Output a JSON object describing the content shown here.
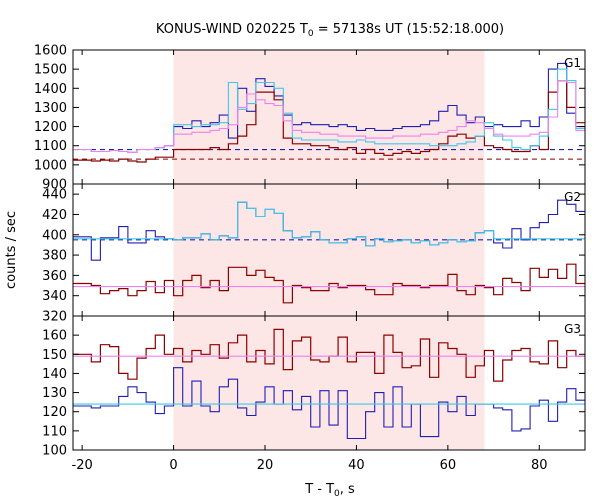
{
  "chart_data": {
    "type": "line",
    "title": "KONUS-WIND 020225 T0 = 57138s UT (15:52:18.000)",
    "title_parts": {
      "pre": "KONUS-WIND 020225 T",
      "sub": "0",
      "post": " = 57138s UT (15:52:18.000)"
    },
    "xlabel": "T - T0, s",
    "xlabel_parts": {
      "pre": "T - T",
      "sub": "0",
      "post": ", s"
    },
    "ylabel": "counts / sec",
    "xlim": [
      -22,
      90
    ],
    "xticks": [
      -20,
      0,
      20,
      40,
      60,
      80
    ],
    "shaded_interval": [
      0,
      68
    ],
    "step_edges_sec": [
      -22,
      -20,
      -18,
      -16,
      -14,
      -12,
      -10,
      -8,
      -6,
      -4,
      -2,
      0,
      2,
      4,
      6,
      8,
      10,
      12,
      14,
      16,
      18,
      20,
      22,
      24,
      26,
      28,
      30,
      32,
      34,
      36,
      38,
      40,
      42,
      44,
      46,
      48,
      50,
      52,
      54,
      56,
      58,
      60,
      62,
      64,
      66,
      68,
      70,
      72,
      74,
      76,
      78,
      80,
      82,
      84,
      86,
      88,
      90
    ],
    "colors": {
      "red_series": "#8b0000",
      "blue_series": "#1f1fb4",
      "pink_line": "#ee82ee",
      "cyan_line": "#3fc8e8",
      "shade": "#fde6e6"
    },
    "panels": [
      {
        "name": "G1",
        "ylim": [
          900,
          1600
        ],
        "yticks": [
          900,
          1000,
          1100,
          1200,
          1300,
          1400,
          1500,
          1600
        ],
        "series": [
          {
            "style": "blue_step",
            "values": [
              1080,
              1080,
              1070,
              1070,
              1075,
              1070,
              1065,
              1080,
              1080,
              1090,
              1100,
              1200,
              1190,
              1230,
              1200,
              1220,
              1260,
              1140,
              1400,
              1280,
              1450,
              1410,
              1360,
              1260,
              1210,
              1220,
              1210,
              1210,
              1200,
              1210,
              1200,
              1180,
              1190,
              1180,
              1180,
              1190,
              1200,
              1200,
              1210,
              1230,
              1280,
              1310,
              1260,
              1220,
              1250,
              1200,
              1210,
              1200,
              1200,
              1230,
              1200,
              1250,
              1500,
              1530,
              1270,
              1200
            ]
          },
          {
            "style": "red_step",
            "values": [
              1025,
              1025,
              1020,
              1025,
              1020,
              1030,
              1020,
              1015,
              1030,
              1040,
              1040,
              1080,
              1080,
              1080,
              1080,
              1090,
              1080,
              1110,
              1150,
              1210,
              1380,
              1380,
              1340,
              1140,
              1110,
              1110,
              1100,
              1100,
              1090,
              1080,
              1090,
              1060,
              1080,
              1060,
              1050,
              1060,
              1070,
              1060,
              1070,
              1080,
              1110,
              1150,
              1160,
              1140,
              1150,
              1100,
              1090,
              1080,
              1070,
              1070,
              1100,
              1080,
              1380,
              1440,
              1300,
              1220
            ]
          },
          {
            "style": "cyan_smooth",
            "values": [
              1080,
              1080,
              1070,
              1070,
              1075,
              1070,
              1065,
              1080,
              1080,
              1090,
              1100,
              1210,
              1210,
              1200,
              1210,
              1210,
              1220,
              1430,
              1290,
              1320,
              1430,
              1430,
              1400,
              1270,
              1140,
              1130,
              1130,
              1130,
              1130,
              1120,
              1120,
              1130,
              1120,
              1110,
              1110,
              1110,
              1110,
              1110,
              1110,
              1100,
              1100,
              1100,
              1110,
              1120,
              1150,
              1220,
              1150,
              1130,
              1090,
              1080,
              1100,
              1150,
              1290,
              1500,
              1440,
              1190
            ]
          },
          {
            "style": "pink_smooth",
            "values": [
              1080,
              1080,
              1070,
              1070,
              1075,
              1070,
              1065,
              1080,
              1080,
              1090,
              1100,
              1160,
              1160,
              1170,
              1170,
              1180,
              1190,
              1210,
              1300,
              1370,
              1340,
              1320,
              1310,
              1230,
              1180,
              1170,
              1170,
              1160,
              1160,
              1150,
              1150,
              1150,
              1140,
              1140,
              1140,
              1150,
              1150,
              1150,
              1160,
              1160,
              1170,
              1180,
              1200,
              1230,
              1220,
              1190,
              1160,
              1150,
              1150,
              1150,
              1160,
              1170,
              1250,
              1440,
              1430,
              1180
            ]
          }
        ],
        "background_levels": [
          {
            "style": "blue_dash",
            "value": 1080
          },
          {
            "style": "red_dash",
            "value": 1030
          }
        ]
      },
      {
        "name": "G2",
        "ylim": [
          320,
          450
        ],
        "yticks": [
          320,
          340,
          360,
          380,
          400,
          420,
          440
        ],
        "series": [
          {
            "style": "blue_step",
            "values": [
              398,
              398,
              375,
              397,
              397,
              408,
              392,
              392,
              404,
              398,
              396,
              395,
              397,
              397,
              401,
              395,
              399,
              397,
              432,
              426,
              418,
              425,
              421,
              404,
              397,
              398,
              403,
              395,
              392,
              392,
              396,
              398,
              389,
              396,
              393,
              394,
              395,
              392,
              394,
              390,
              392,
              395,
              393,
              394,
              402,
              404,
              392,
              387,
              406,
              395,
              407,
              412,
              420,
              434,
              430,
              423
            ]
          },
          {
            "style": "red_step",
            "values": [
              352,
              352,
              350,
              342,
              345,
              347,
              340,
              345,
              354,
              343,
              355,
              340,
              355,
              360,
              348,
              355,
              345,
              368,
              368,
              360,
              365,
              358,
              355,
              333,
              350,
              348,
              345,
              345,
              352,
              348,
              350,
              350,
              346,
              341,
              341,
              352,
              350,
              350,
              348,
              350,
              350,
              361,
              345,
              341,
              350,
              348,
              341,
              357,
              353,
              345,
              367,
              358,
              366,
              357,
              371,
              352
            ]
          },
          {
            "style": "cyan_smooth",
            "values": [
              396,
              396,
              396,
              396,
              396,
              396,
              396,
              396,
              396,
              396,
              396,
              395,
              397,
              397,
              401,
              395,
              399,
              397,
              432,
              426,
              418,
              425,
              421,
              404,
              397,
              398,
              403,
              395,
              392,
              392,
              396,
              398,
              389,
              396,
              393,
              394,
              395,
              392,
              394,
              390,
              392,
              395,
              393,
              394,
              402,
              404,
              396,
              396,
              396,
              396,
              396,
              396,
              396,
              396,
              396,
              396
            ]
          },
          {
            "style": "pink_smooth",
            "values": [
              349,
              349,
              349,
              349,
              349,
              349,
              349,
              349,
              349,
              349,
              349,
              349,
              349,
              349,
              349,
              349,
              349,
              349,
              349,
              349,
              349,
              349,
              349,
              349,
              349,
              349,
              349,
              349,
              349,
              349,
              349,
              349,
              349,
              349,
              349,
              349,
              349,
              349,
              349,
              349,
              349,
              349,
              349,
              349,
              349,
              349,
              349,
              349,
              349,
              349,
              349,
              349,
              349,
              349,
              349,
              349
            ]
          }
        ],
        "background_levels": [
          {
            "style": "blue_dash",
            "value": 395
          }
        ]
      },
      {
        "name": "G3",
        "ylim": [
          100,
          170
        ],
        "yticks": [
          100,
          110,
          120,
          130,
          140,
          150,
          160
        ],
        "series": [
          {
            "style": "blue_step",
            "values": [
              123,
              123,
              122,
              123,
              123,
              128,
              133,
              130,
              125,
              119,
              123,
              143,
              123,
              136,
              123,
              120,
              133,
              137,
              122,
              118,
              125,
              133,
              124,
              131,
              121,
              128,
              112,
              131,
              113,
              131,
              106,
              106,
              120,
              130,
              112,
              133,
              112,
              124,
              107,
              107,
              125,
              120,
              128,
              118,
              124,
              124,
              122,
              121,
              110,
              111,
              123,
              126,
              115,
              125,
              132,
              126
            ]
          },
          {
            "style": "red_step",
            "values": [
              150,
              150,
              146,
              155,
              154,
              140,
              137,
              148,
              153,
              160,
              150,
              153,
              146,
              152,
              150,
              155,
              148,
              156,
              160,
              146,
              152,
              145,
              163,
              142,
              157,
              159,
              147,
              146,
              149,
              159,
              146,
              151,
              151,
              140,
              160,
              151,
              143,
              144,
              158,
              138,
              156,
              153,
              150,
              138,
              144,
              152,
              136,
              147,
              152,
              153,
              146,
              145,
              157,
              143,
              152,
              149
            ]
          },
          {
            "style": "cyan_smooth",
            "values": [
              124,
              124,
              124,
              124,
              124,
              124,
              124,
              124,
              124,
              124,
              124,
              124,
              124,
              124,
              124,
              124,
              124,
              124,
              124,
              124,
              124,
              124,
              124,
              124,
              124,
              124,
              124,
              124,
              124,
              124,
              124,
              124,
              124,
              124,
              124,
              124,
              124,
              124,
              124,
              124,
              124,
              124,
              124,
              124,
              124,
              124,
              124,
              124,
              124,
              124,
              124,
              124,
              124,
              124,
              124,
              124
            ]
          },
          {
            "style": "pink_smooth",
            "values": [
              149,
              149,
              149,
              149,
              149,
              149,
              149,
              149,
              149,
              149,
              149,
              149,
              149,
              149,
              149,
              149,
              149,
              149,
              149,
              149,
              149,
              149,
              149,
              149,
              149,
              149,
              149,
              149,
              149,
              149,
              149,
              149,
              149,
              149,
              149,
              149,
              149,
              149,
              149,
              149,
              149,
              149,
              149,
              149,
              149,
              149,
              149,
              149,
              149,
              149,
              149,
              149,
              149,
              149,
              149,
              149
            ]
          }
        ],
        "background_levels": []
      }
    ]
  }
}
